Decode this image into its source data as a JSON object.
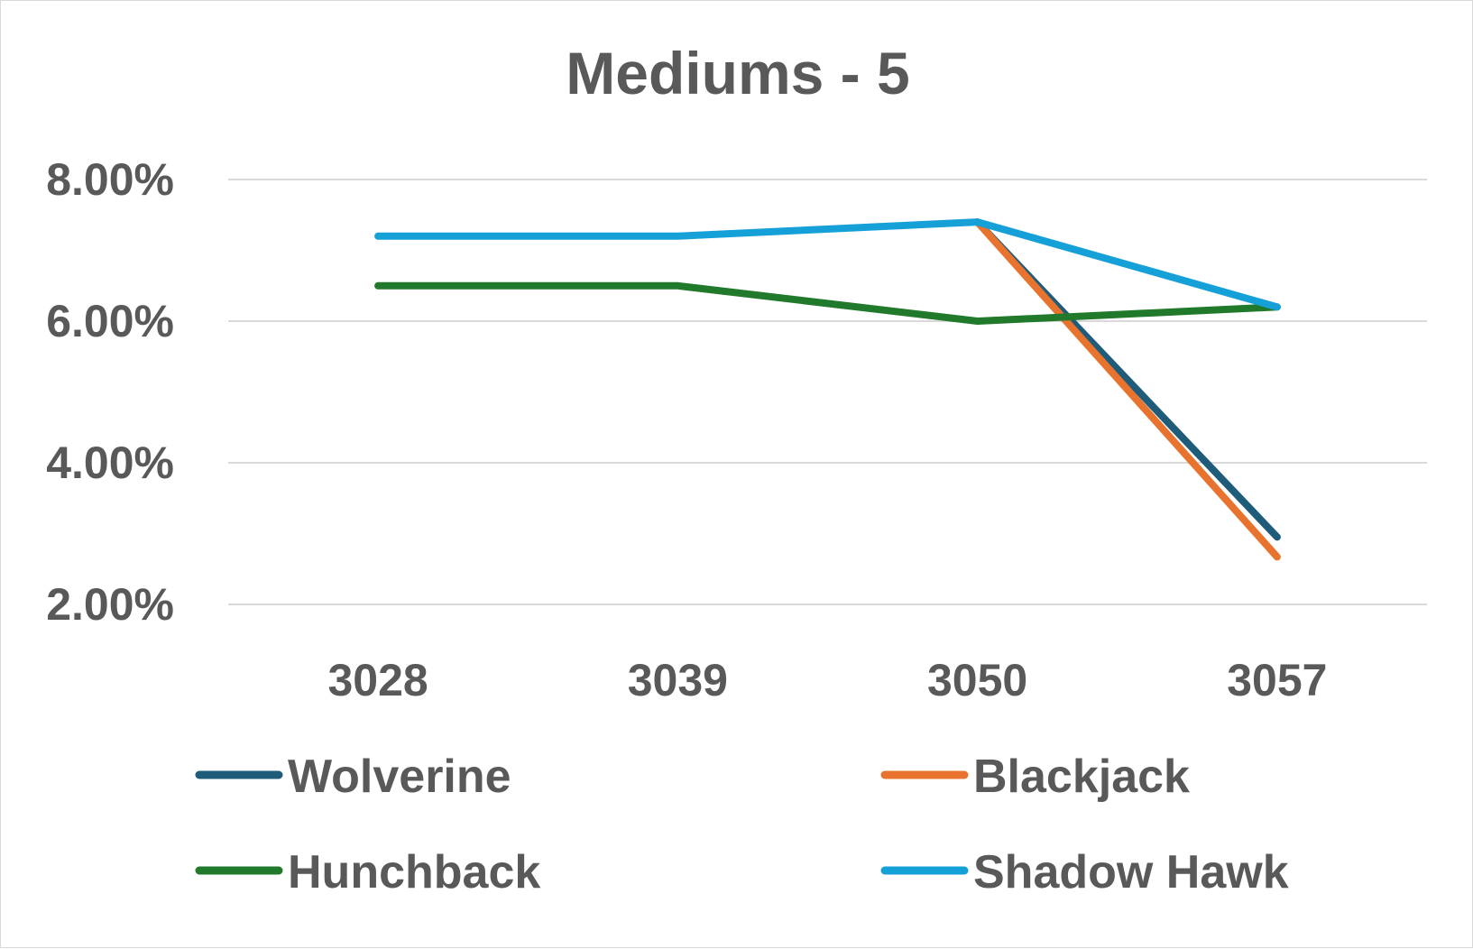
{
  "chart_data": {
    "type": "line",
    "title": "Mediums - 5",
    "xlabel": "",
    "ylabel": "",
    "categories": [
      "3028",
      "3039",
      "3050",
      "3057"
    ],
    "ylim": [
      0.02,
      0.08
    ],
    "y_ticks": [
      {
        "value": 0.08,
        "label": "8.00%"
      },
      {
        "value": 0.06,
        "label": "6.00%"
      },
      {
        "value": 0.04,
        "label": "4.00%"
      },
      {
        "value": 0.02,
        "label": "2.00%"
      }
    ],
    "grid": true,
    "legend_position": "bottom",
    "series": [
      {
        "name": "Wolverine",
        "color": "#1f5c7a",
        "values": [
          null,
          null,
          0.074,
          0.0295
        ]
      },
      {
        "name": "Blackjack",
        "color": "#e8732f",
        "values": [
          null,
          null,
          0.074,
          0.0267
        ]
      },
      {
        "name": "Hunchback",
        "color": "#217a2b",
        "values": [
          0.065,
          0.065,
          0.06,
          0.062
        ]
      },
      {
        "name": "Shadow Hawk",
        "color": "#16a0d8",
        "values": [
          0.072,
          0.072,
          0.074,
          0.062
        ]
      }
    ]
  }
}
